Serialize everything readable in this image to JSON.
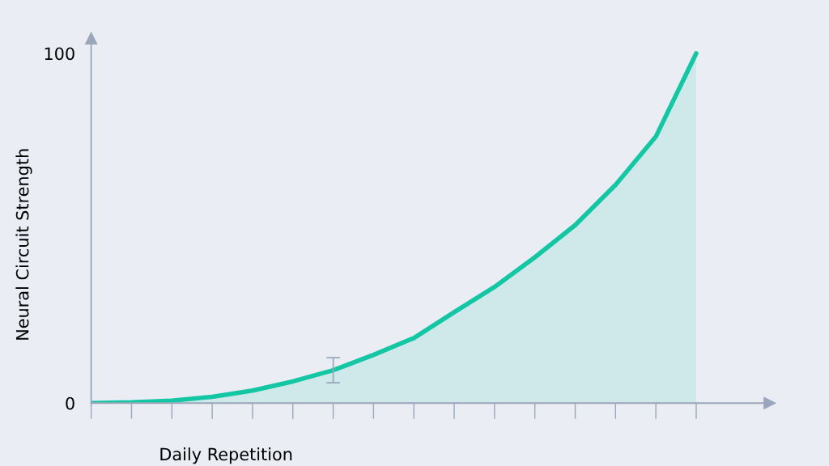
{
  "chart_data": {
    "type": "area",
    "xlabel": "Daily Repetition",
    "ylabel": "Neural Circuit Strength",
    "categories": [
      null,
      null,
      null,
      null,
      null,
      null,
      null,
      null,
      null,
      null,
      null,
      null,
      null,
      null,
      null,
      null
    ],
    "ylim": [
      0,
      103
    ],
    "yticks": [
      0,
      100
    ],
    "grid": false,
    "series": [
      {
        "color": "#14c7a4",
        "values": [
          0,
          0.2,
          0.7,
          1.8,
          3.6,
          6.2,
          9.4,
          13.8,
          18.6,
          26.0,
          33.2,
          41.7,
          50.9,
          62.4,
          76.2,
          100
        ],
        "errors": [
          null,
          null,
          null,
          null,
          null,
          null,
          3.6,
          null,
          null,
          null,
          null,
          null,
          null,
          null,
          null,
          null
        ]
      }
    ]
  }
}
